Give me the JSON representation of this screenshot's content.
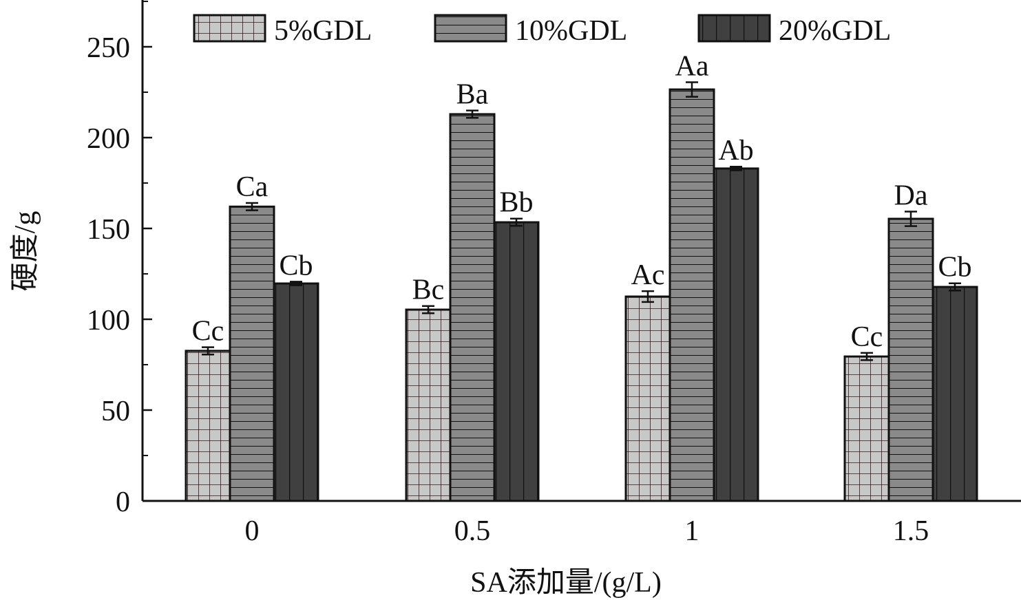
{
  "chart_data": {
    "type": "bar",
    "title": "",
    "xlabel": "SA添加量/(g/L)",
    "ylabel": "硬度/g",
    "ylim": [
      0,
      275
    ],
    "yticks": [
      0,
      50,
      100,
      150,
      200,
      250
    ],
    "categories": [
      "0",
      "0.5",
      "1",
      "1.5"
    ],
    "legend_position": "top",
    "grid": false,
    "series": [
      {
        "name": "5%GDL",
        "color": "#c8c8c8",
        "pattern": "grid",
        "values": [
          82.6,
          105.3,
          112.5,
          79.5
        ],
        "errors": [
          2,
          2,
          3,
          2
        ],
        "labels": [
          "Cc",
          "Bc",
          "Ac",
          "Cc"
        ]
      },
      {
        "name": "10%GDL",
        "color": "#8a8a8a",
        "pattern": "horizontal",
        "values": [
          162,
          212.9,
          226.5,
          155.3
        ],
        "errors": [
          2,
          2,
          4,
          4
        ],
        "labels": [
          "Ca",
          "Ba",
          "Aa",
          "Da"
        ]
      },
      {
        "name": "20%GDL",
        "color": "#404040",
        "pattern": "vertical",
        "values": [
          119.7,
          153.4,
          183,
          117.8
        ],
        "errors": [
          1,
          2,
          1,
          2
        ],
        "labels": [
          "Cb",
          "Bb",
          "Ab",
          "Cb"
        ]
      }
    ]
  }
}
